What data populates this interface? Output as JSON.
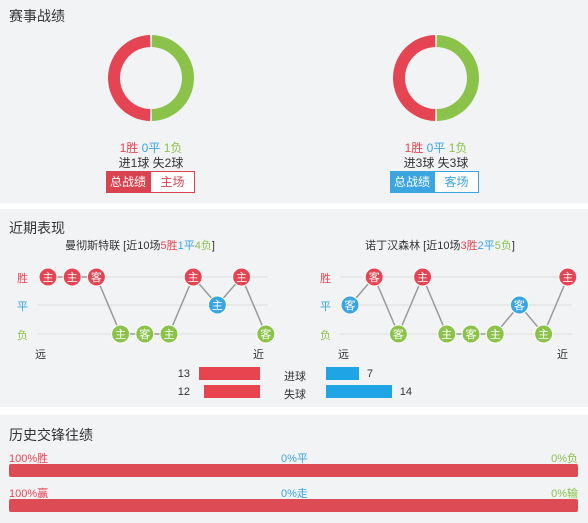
{
  "record": {
    "title": "赛事战绩",
    "left": {
      "win_pct": 50,
      "draw_pct": 0,
      "lose_pct": 50,
      "win": "1胜",
      "draw": "0平",
      "lose": "1负",
      "goals": "进1球 失2球",
      "tabs": [
        "总战绩",
        "主场"
      ]
    },
    "right": {
      "win_pct": 50,
      "draw_pct": 0,
      "lose_pct": 50,
      "win": "1胜",
      "draw": "0平",
      "lose": "1负",
      "goals": "进3球 失3球",
      "tabs": [
        "总战绩",
        "客场"
      ]
    }
  },
  "recent": {
    "title": "近期表现",
    "axis": {
      "win": "胜",
      "draw": "平",
      "lose": "负",
      "far": "远",
      "near": "近"
    },
    "left": {
      "team": "曼彻斯特联",
      "summary_pre": " [近10场",
      "w": "5胜",
      "d": "1平",
      "l": "4负",
      "summary_post": "]",
      "matches": [
        {
          "r": "W",
          "v": "主"
        },
        {
          "r": "W",
          "v": "主"
        },
        {
          "r": "W",
          "v": "客"
        },
        {
          "r": "L",
          "v": "主"
        },
        {
          "r": "L",
          "v": "客"
        },
        {
          "r": "L",
          "v": "主"
        },
        {
          "r": "W",
          "v": "主"
        },
        {
          "r": "D",
          "v": "主"
        },
        {
          "r": "W",
          "v": "主"
        },
        {
          "r": "L",
          "v": "客"
        }
      ]
    },
    "right": {
      "team": "诺丁汉森林",
      "summary_pre": " [近10场",
      "w": "3胜",
      "d": "2平",
      "l": "5负",
      "summary_post": "]",
      "matches": [
        {
          "r": "D",
          "v": "客"
        },
        {
          "r": "W",
          "v": "客"
        },
        {
          "r": "L",
          "v": "客"
        },
        {
          "r": "W",
          "v": "主"
        },
        {
          "r": "L",
          "v": "主"
        },
        {
          "r": "L",
          "v": "客"
        },
        {
          "r": "L",
          "v": "主"
        },
        {
          "r": "D",
          "v": "客"
        },
        {
          "r": "L",
          "v": "主"
        },
        {
          "r": "W",
          "v": "主"
        }
      ]
    },
    "goals": {
      "label": "进球",
      "left": 13,
      "right": 7
    },
    "conceded": {
      "label": "失球",
      "left": 12,
      "right": 14
    }
  },
  "history": {
    "title": "历史交锋往绩",
    "row1": {
      "win": "100%胜",
      "draw": "0%平",
      "lose": "0%负",
      "win_pct": 100
    },
    "row2": {
      "win": "100%赢",
      "draw": "0%走",
      "lose": "0%输",
      "win_pct": 100
    }
  },
  "colors": {
    "win": "#e54553",
    "draw": "#3aa5e0",
    "lose": "#8bc34a",
    "bar_red": "#e84450",
    "bar_blue": "#1fa5e6"
  }
}
